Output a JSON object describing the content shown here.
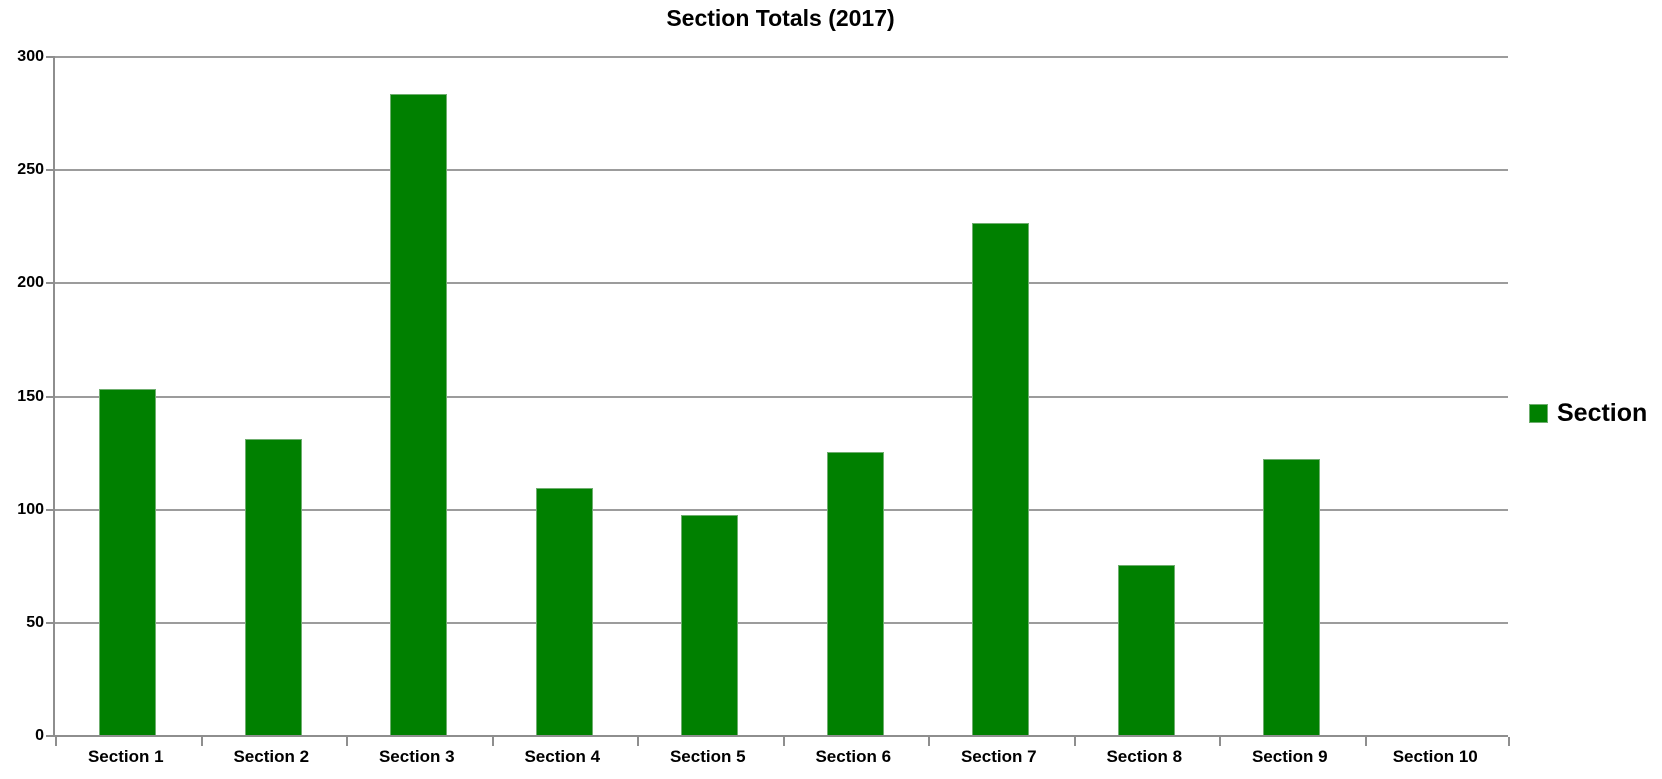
{
  "title": "Section Totals (2017)",
  "legend": {
    "label": "Section",
    "swatch_color": "#008000"
  },
  "colors": {
    "bar_fill": "#008000",
    "bar_border": "#6fae6f",
    "gridline": "#9c9c9c",
    "axis": "#8e8e8e",
    "text": "#000000",
    "background": "#ffffff"
  },
  "chart_data": {
    "type": "bar",
    "title": "Section Totals (2017)",
    "categories": [
      "Section 1",
      "Section 2",
      "Section 3",
      "Section 4",
      "Section 5",
      "Section 6",
      "Section 7",
      "Section 8",
      "Section 9",
      "Section 10"
    ],
    "series": [
      {
        "name": "Section",
        "values": [
          153,
          131,
          283,
          109,
          97,
          125,
          226,
          75,
          122,
          0
        ]
      }
    ],
    "xlabel": "",
    "ylabel": "",
    "ylim": [
      0,
      300
    ],
    "yticks": [
      0,
      50,
      100,
      150,
      200,
      250,
      300
    ],
    "grid": "horizontal",
    "legend_position": "right-middle"
  }
}
